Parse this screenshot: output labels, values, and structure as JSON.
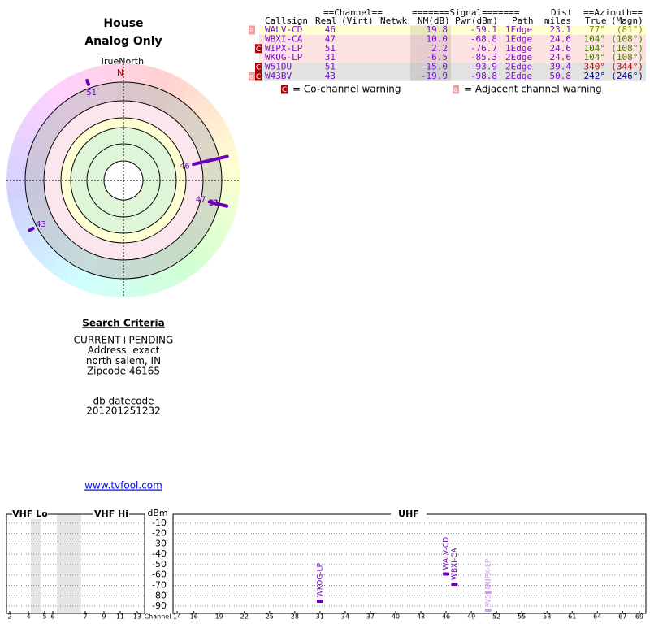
{
  "header": {
    "title": "House",
    "subtitle": "Analog Only"
  },
  "polar": {
    "north_label": "TrueNorth",
    "north_marker": "N"
  },
  "search": {
    "title": "Search Criteria",
    "lines": [
      "CURRENT+PENDING",
      "Address: exact",
      "north salem, IN",
      "Zipcode 46165"
    ],
    "datecode_label": "db datecode",
    "datecode": "201201251232"
  },
  "link": "www.tvfool.com",
  "table": {
    "group_headers": [
      "==Channel==",
      "=======Signal=======",
      "Dist",
      "==Azimuth=="
    ],
    "columns": [
      "Callsign",
      "Real",
      "(Virt)",
      "Netwk",
      "NM(dB)",
      "Pwr(dBm)",
      "Path",
      "miles",
      "True",
      "(Magn)"
    ],
    "rows": [
      {
        "flags": [
          "a"
        ],
        "callsign": "WALV-CD",
        "real": 46,
        "nm": 19.8,
        "pwr": -59.1,
        "path": "1Edge",
        "dist": 23.1,
        "az_true": 77,
        "az_true_label": "77°",
        "az_magn": "(81°)",
        "color": "#ffffd2",
        "az_color": "#7a8a00",
        "spectrum_color": "#6a00b8"
      },
      {
        "callsign": "WBXI-CA",
        "real": 47,
        "nm": 10,
        "nm_label": "10.0",
        "pwr": -68.8,
        "path": "1Edge",
        "dist": 24.6,
        "az_true": 104,
        "az_true_label": "104°",
        "az_magn": "(108°)",
        "color": "#fde2e2",
        "az_color": "#4a7a00",
        "spectrum_color": "#6a00b8"
      },
      {
        "flags": [
          "C"
        ],
        "callsign": "WIPX-LP",
        "real": 51,
        "nm": 2.2,
        "pwr": -76.7,
        "path": "1Edge",
        "dist": 24.6,
        "az_true": 104,
        "az_true_label": "104°",
        "az_magn": "(108°)",
        "color": "#fde2e2",
        "az_color": "#4a7a00",
        "spectrum_color": "#c9a0e8"
      },
      {
        "callsign": "WKOG-LP",
        "real": 31,
        "nm": -6.5,
        "pwr": -85.3,
        "path": "2Edge",
        "dist": 24.6,
        "az_true": 104,
        "az_true_label": "104°",
        "az_magn": "(108°)",
        "color": "#fde2e2",
        "az_color": "#4a7a00",
        "spectrum_color": "#6a00b8"
      },
      {
        "flags": [
          "C"
        ],
        "callsign": "W51DU",
        "real": 51,
        "nm": -15,
        "nm_label": "-15.0",
        "pwr": -93.9,
        "path": "2Edge",
        "dist": 39.4,
        "az_true": 340,
        "az_true_label": "340°",
        "az_magn": "(344°)",
        "color": "#e2e2e2",
        "az_color": "#c00000",
        "spectrum_color": "#c9a0e8"
      },
      {
        "flags": [
          "a",
          "C"
        ],
        "callsign": "W43BV",
        "real": 43,
        "nm": -19.9,
        "pwr": -98.8,
        "path": "2Edge",
        "dist": 50.8,
        "az_true": 242,
        "az_true_label": "242°",
        "az_magn": "(246°)",
        "color": "#e2e2e2",
        "az_color": "#0000a0",
        "spectrum_color": "#c9a0e8"
      }
    ]
  },
  "legend": [
    {
      "icon": "C",
      "text": "= Co-channel warning",
      "color": "#b00000"
    },
    {
      "icon": "a",
      "text": "= Adjacent channel warning",
      "color": "#f0a0a0"
    }
  ],
  "spectrum": {
    "unit": "dBm",
    "xlabel": "Channel",
    "panels": [
      "VHF Lo",
      "VHF Hi",
      "UHF"
    ],
    "ylim": [
      0,
      -97
    ],
    "yticks": [
      -10,
      -20,
      -30,
      -40,
      -50,
      -60,
      -70,
      -80,
      -90
    ],
    "vhf_ticks": [
      2,
      4,
      5,
      6,
      7,
      9,
      11,
      13
    ],
    "uhf_xlim": [
      14,
      69
    ],
    "uhf_ticks": [
      14,
      16,
      19,
      22,
      25,
      28,
      31,
      34,
      37,
      40,
      43,
      46,
      49,
      52,
      55,
      58,
      61,
      64,
      67,
      69
    ]
  }
}
